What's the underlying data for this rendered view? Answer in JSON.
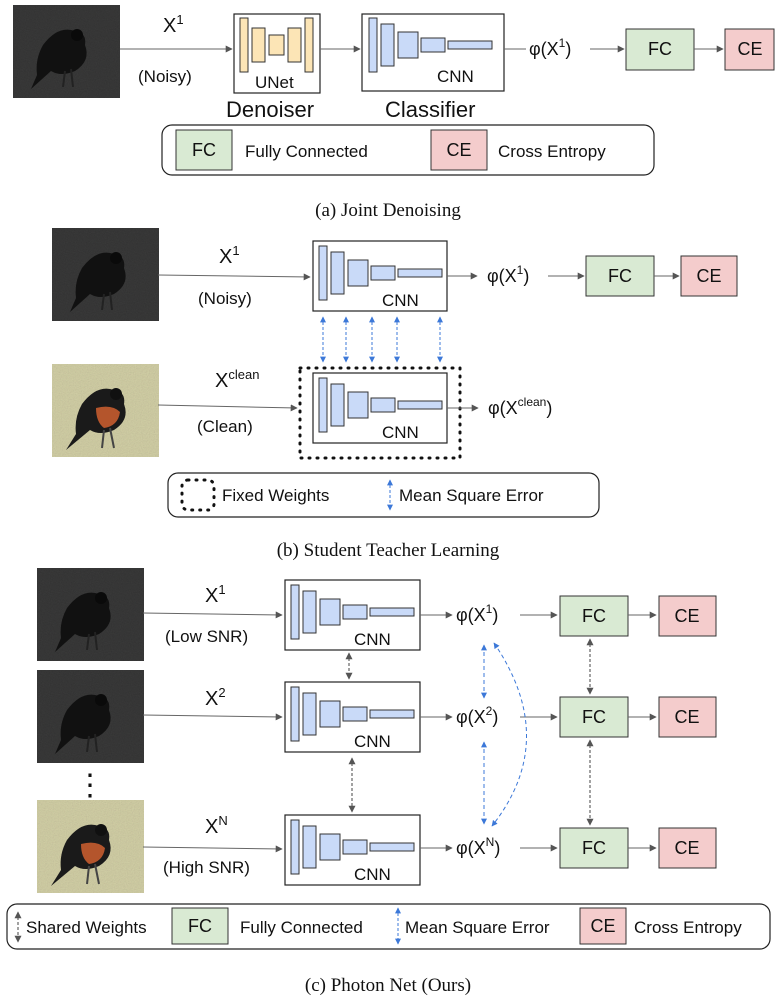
{
  "panel_a": {
    "input_label": "X",
    "input_sup": "1",
    "input_desc": "(Noisy)",
    "unet_label": "UNet",
    "denoiser_label": "Denoiser",
    "cnn_label": "CNN",
    "classifier_label": "Classifier",
    "phi_prefix": "φ(X",
    "phi_sup": "1",
    "phi_suffix": ")",
    "fc": "FC",
    "ce": "CE",
    "legend": {
      "fc_box": "FC",
      "fc_text": "Fully Connected",
      "ce_box": "CE",
      "ce_text": "Cross Entropy"
    },
    "caption": "(a) Joint Denoising"
  },
  "panel_b": {
    "noisy_label": "X",
    "noisy_sup": "1",
    "noisy_desc": "(Noisy)",
    "clean_label": "X",
    "clean_sup": "clean",
    "clean_desc": "(Clean)",
    "cnn_top": "CNN",
    "cnn_bottom": "CNN",
    "phi_top_prefix": "φ(X",
    "phi_top_sup": "1",
    "phi_top_suffix": ")",
    "phi_bottom_prefix": "φ(X",
    "phi_bottom_sup": "clean",
    "phi_bottom_suffix": ")",
    "fc": "FC",
    "ce": "CE",
    "legend": {
      "fixed_text": "Fixed Weights",
      "mse_text": "Mean Square Error"
    },
    "caption": "(b) Student Teacher Learning"
  },
  "panel_c": {
    "rows": [
      {
        "label": "X",
        "sup": "1",
        "desc": "(Low SNR)",
        "cnn": "CNN",
        "phi_prefix": "φ(X",
        "phi_sup": "1",
        "phi_suffix": ")",
        "fc": "FC",
        "ce": "CE"
      },
      {
        "label": "X",
        "sup": "2",
        "desc": "",
        "cnn": "CNN",
        "phi_prefix": "φ(X",
        "phi_sup": "2",
        "phi_suffix": ")",
        "fc": "FC",
        "ce": "CE"
      },
      {
        "label": "X",
        "sup": "N",
        "desc": "(High SNR)",
        "cnn": "CNN",
        "phi_prefix": "φ(X",
        "phi_sup": "N",
        "phi_suffix": ")",
        "fc": "FC",
        "ce": "CE"
      }
    ],
    "ellipsis": "⋮",
    "legend": {
      "shared_text": "Shared Weights",
      "fc_box": "FC",
      "fc_text": "Fully Connected",
      "mse_text": "Mean Square Error",
      "ce_box": "CE",
      "ce_text": "Cross Entropy"
    },
    "caption": "(c) Photon Net (Ours)"
  },
  "colors": {
    "fc_fill": "#d9ead3",
    "ce_fill": "#f4cccc",
    "cnn_fill": "#c9daf8",
    "unet_fill": "#fce5b6",
    "mse_line": "#3c78d8",
    "arrow": "#666666"
  }
}
